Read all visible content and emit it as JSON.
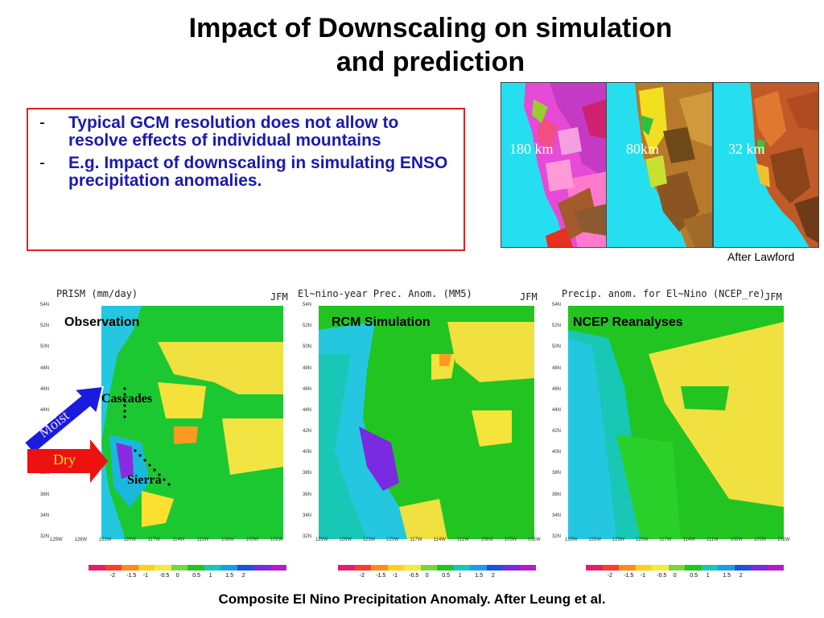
{
  "title": {
    "line1": "Impact of Downscaling on simulation",
    "line2": "and prediction"
  },
  "bullets": [
    "Typical GCM resolution does not allow to resolve effects of individual mountains",
    "E.g. Impact of downscaling in simulating ENSO precipitation anomalies."
  ],
  "resolution_maps": [
    {
      "label": "180 km"
    },
    {
      "label": "80km"
    },
    {
      "label": "32 km"
    }
  ],
  "after_lawford": "After Lawford",
  "panels": [
    {
      "title_left": "PRISM  (mm/day)",
      "season": "JFM",
      "label": "Observation"
    },
    {
      "title_left": "El~nino-year Prec. Anom.   (MM5)",
      "season": "JFM",
      "label": "RCM Simulation"
    },
    {
      "title_left": "Precip. anom. for El~Nino (NCEP_re)",
      "season": "JFM",
      "label": "NCEP Reanalyses"
    }
  ],
  "lat_ticks": [
    "54N",
    "52N",
    "50N",
    "48N",
    "46N",
    "44N",
    "42N",
    "40N",
    "38N",
    "36N",
    "34N",
    "32N"
  ],
  "lon_ticks": [
    "129W",
    "126W",
    "123W",
    "120W",
    "117W",
    "114W",
    "111W",
    "108W",
    "105W",
    "102W"
  ],
  "colorbar_ticks": [
    "-2",
    "-1.5",
    "-1",
    "-0.5",
    "0",
    "0.5",
    "1",
    "1.5",
    "2"
  ],
  "colorbar_colors": [
    "#e0206c",
    "#ff3b2a",
    "#ff8c1a",
    "#ffd21a",
    "#f3ec3a",
    "#7ad63d",
    "#22c422",
    "#19c7b6",
    "#1aa0e0",
    "#1a53e0",
    "#7a2ae0",
    "#b51cc9"
  ],
  "annotations": {
    "moist": "Moist",
    "dry": "Dry",
    "cascades": "Cascades",
    "sierra": "Sierra"
  },
  "caption": "Composite El Nino Precipitation Anomaly. After Leung et al."
}
